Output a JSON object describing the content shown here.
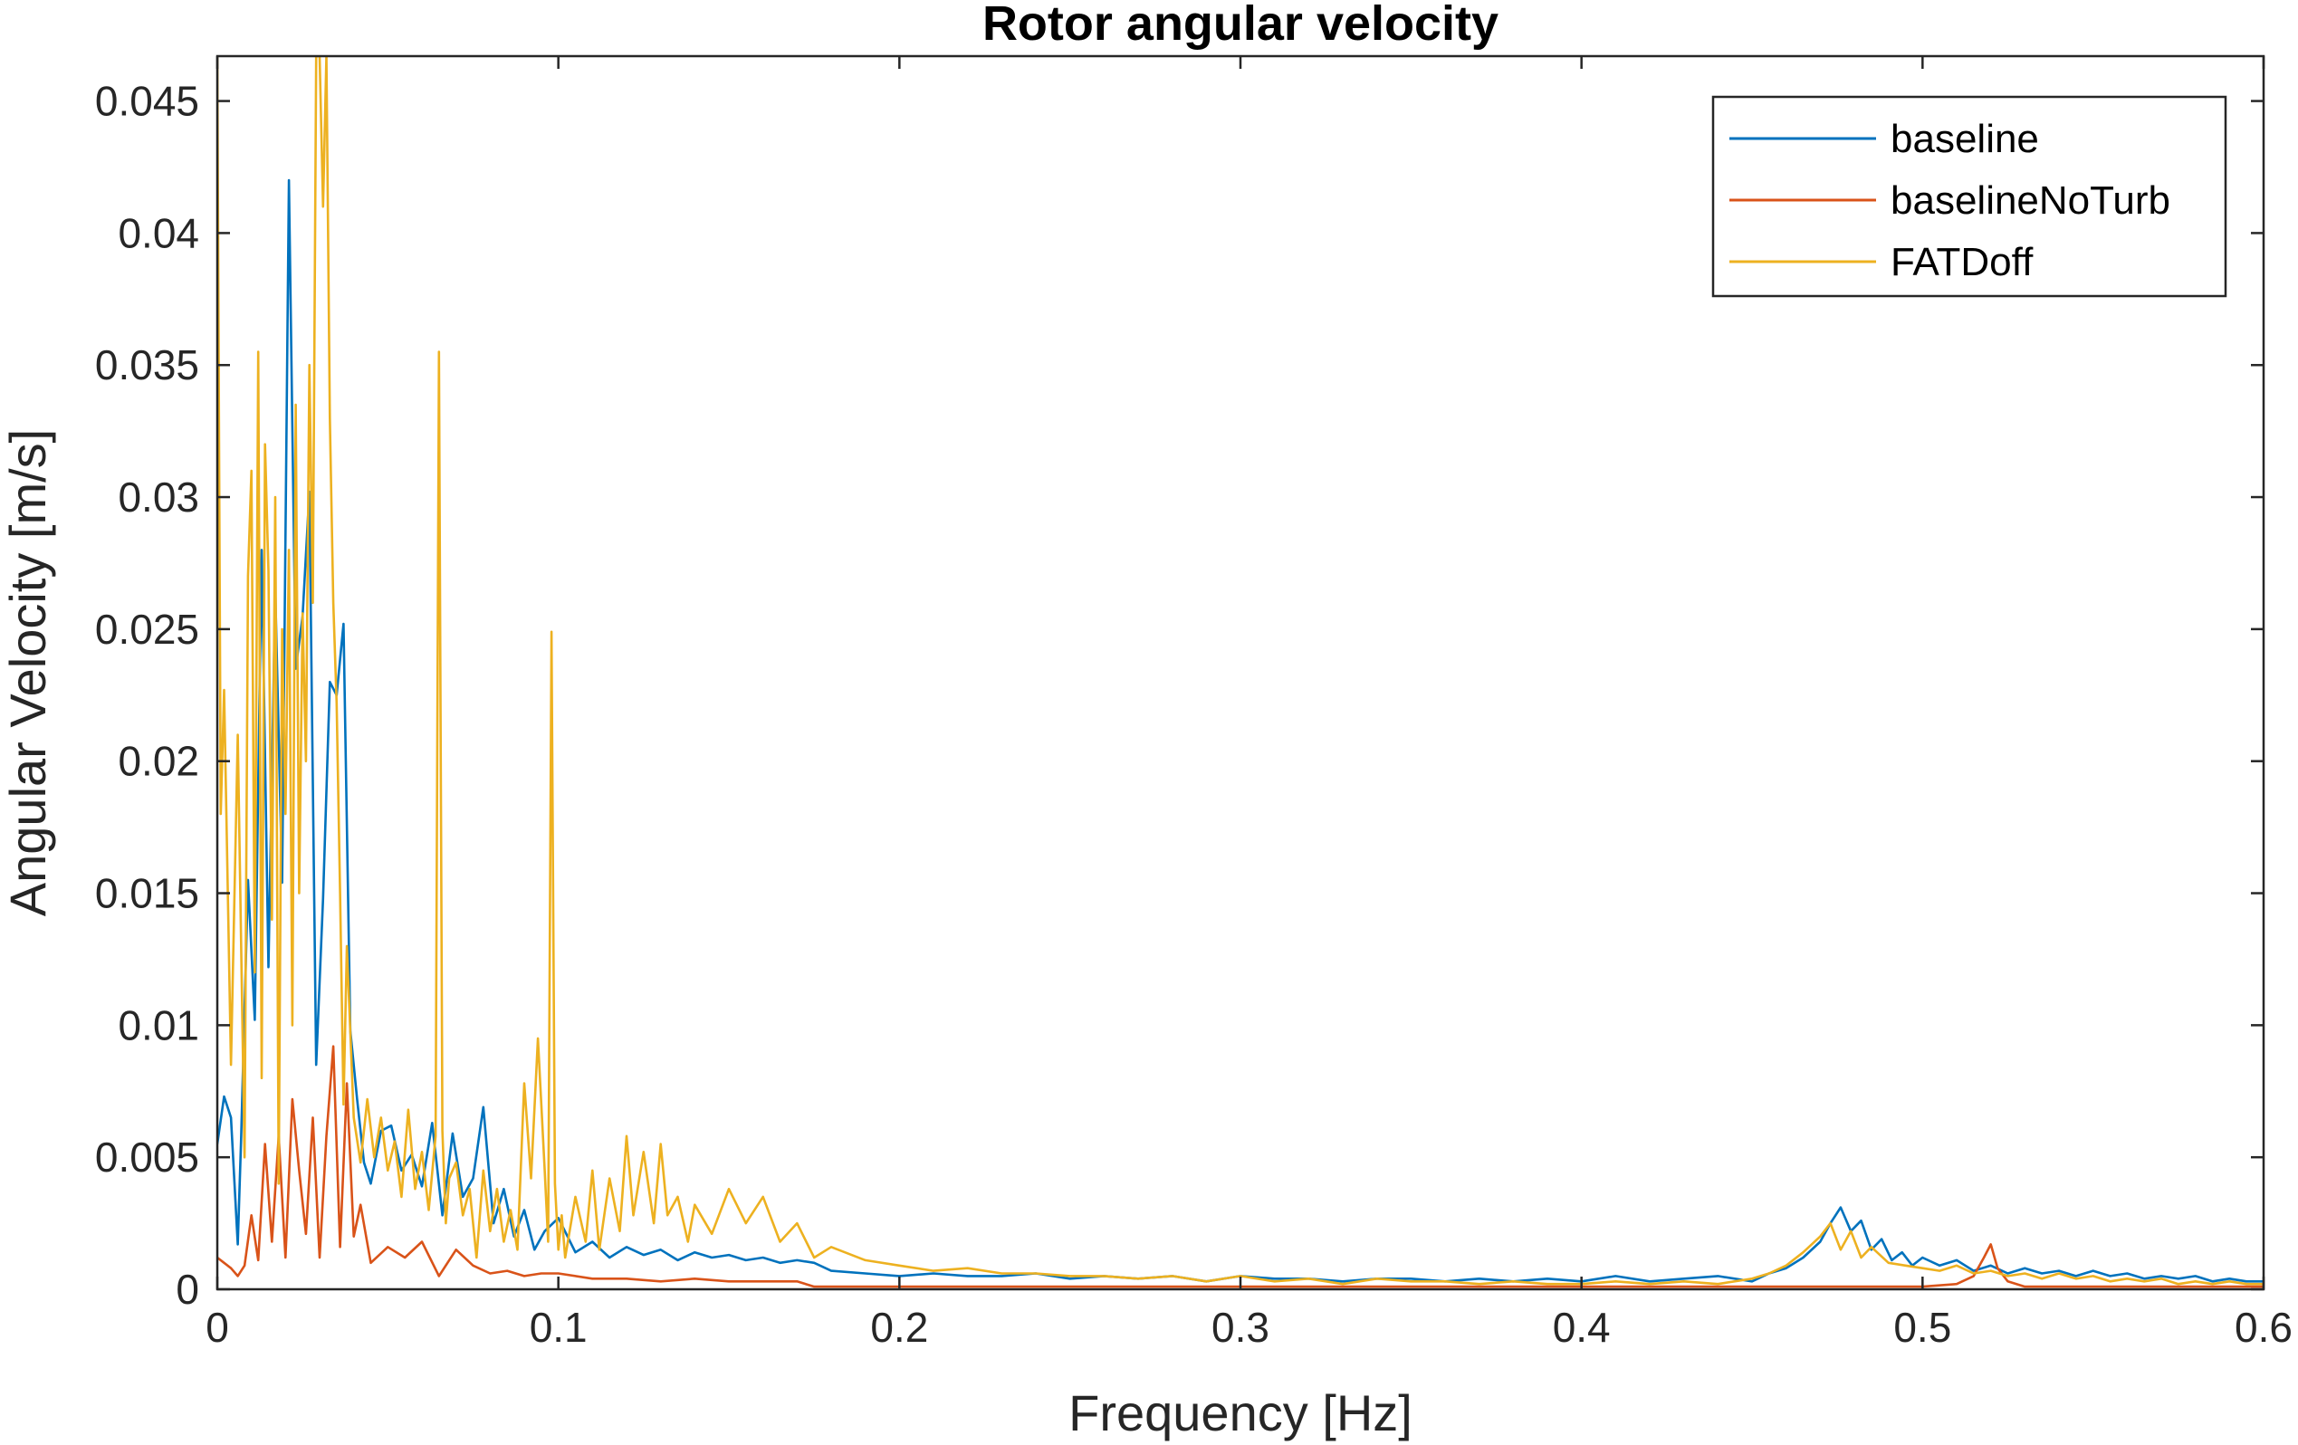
{
  "chart_data": {
    "type": "line",
    "title": "Rotor angular velocity",
    "xlabel": "Frequency [Hz]",
    "ylabel": "Angular Velocity [m/s]",
    "xlim": [
      0,
      0.6
    ],
    "ylim": [
      0,
      0.0467
    ],
    "xticks": [
      0,
      0.1,
      0.2,
      0.3,
      0.4,
      0.5,
      0.6
    ],
    "xtick_labels": [
      "0",
      "0.1",
      "0.2",
      "0.3",
      "0.4",
      "0.5",
      "0.6"
    ],
    "yticks": [
      0,
      0.005,
      0.01,
      0.015,
      0.02,
      0.025,
      0.03,
      0.035,
      0.04,
      0.045
    ],
    "ytick_labels": [
      "0",
      "0.005",
      "0.01",
      "0.015",
      "0.02",
      "0.025",
      "0.03",
      "0.035",
      "0.04",
      "0.045"
    ],
    "grid": false,
    "legend_position": "top-right",
    "series": [
      {
        "name": "baseline",
        "color": "#0072BD",
        "x": [
          0,
          0.002,
          0.004,
          0.006,
          0.007,
          0.009,
          0.011,
          0.013,
          0.015,
          0.017,
          0.019,
          0.021,
          0.023,
          0.025,
          0.027,
          0.029,
          0.031,
          0.033,
          0.035,
          0.037,
          0.039,
          0.041,
          0.043,
          0.045,
          0.048,
          0.051,
          0.054,
          0.057,
          0.06,
          0.063,
          0.066,
          0.069,
          0.072,
          0.075,
          0.078,
          0.081,
          0.084,
          0.087,
          0.09,
          0.093,
          0.096,
          0.1,
          0.105,
          0.11,
          0.115,
          0.12,
          0.125,
          0.13,
          0.135,
          0.14,
          0.145,
          0.15,
          0.155,
          0.16,
          0.165,
          0.17,
          0.175,
          0.18,
          0.19,
          0.2,
          0.21,
          0.22,
          0.23,
          0.24,
          0.25,
          0.26,
          0.27,
          0.28,
          0.29,
          0.3,
          0.31,
          0.32,
          0.33,
          0.34,
          0.35,
          0.36,
          0.37,
          0.38,
          0.39,
          0.4,
          0.41,
          0.42,
          0.43,
          0.44,
          0.45,
          0.455,
          0.46,
          0.465,
          0.47,
          0.473,
          0.476,
          0.479,
          0.482,
          0.485,
          0.488,
          0.491,
          0.494,
          0.497,
          0.5,
          0.505,
          0.51,
          0.515,
          0.52,
          0.525,
          0.53,
          0.535,
          0.54,
          0.545,
          0.55,
          0.555,
          0.56,
          0.565,
          0.57,
          0.575,
          0.58,
          0.585,
          0.59,
          0.595,
          0.6
        ],
        "y": [
          0.0055,
          0.0073,
          0.0065,
          0.0017,
          0.0058,
          0.0155,
          0.0102,
          0.028,
          0.0122,
          0.0265,
          0.0154,
          0.042,
          0.0235,
          0.0255,
          0.0302,
          0.0085,
          0.0148,
          0.023,
          0.0225,
          0.0252,
          0.0098,
          0.0072,
          0.0048,
          0.004,
          0.006,
          0.0062,
          0.0045,
          0.0051,
          0.0039,
          0.0063,
          0.0028,
          0.0059,
          0.0035,
          0.0042,
          0.0069,
          0.0025,
          0.0038,
          0.002,
          0.003,
          0.0015,
          0.0022,
          0.0027,
          0.0014,
          0.0018,
          0.0012,
          0.0016,
          0.0013,
          0.0015,
          0.0011,
          0.0014,
          0.0012,
          0.0013,
          0.0011,
          0.0012,
          0.001,
          0.0011,
          0.001,
          0.0007,
          0.0006,
          0.0005,
          0.0006,
          0.0005,
          0.0005,
          0.0006,
          0.0004,
          0.0005,
          0.0004,
          0.0005,
          0.0003,
          0.0005,
          0.0004,
          0.0004,
          0.0003,
          0.0004,
          0.0004,
          0.0003,
          0.0004,
          0.0003,
          0.0004,
          0.0003,
          0.0005,
          0.0003,
          0.0004,
          0.0005,
          0.0003,
          0.0006,
          0.0008,
          0.0012,
          0.0018,
          0.0025,
          0.0031,
          0.0022,
          0.0026,
          0.0015,
          0.0019,
          0.0011,
          0.0014,
          0.0009,
          0.0012,
          0.0009,
          0.0011,
          0.0007,
          0.0009,
          0.0006,
          0.0008,
          0.0006,
          0.0007,
          0.0005,
          0.0007,
          0.0005,
          0.0006,
          0.0004,
          0.0005,
          0.0004,
          0.0005,
          0.0003,
          0.0004,
          0.0003,
          0.0003
        ]
      },
      {
        "name": "baselineNoTurb",
        "color": "#D95319",
        "x": [
          0,
          0.002,
          0.004,
          0.006,
          0.008,
          0.01,
          0.012,
          0.014,
          0.016,
          0.018,
          0.02,
          0.022,
          0.024,
          0.026,
          0.028,
          0.03,
          0.032,
          0.034,
          0.036,
          0.038,
          0.04,
          0.042,
          0.045,
          0.05,
          0.055,
          0.06,
          0.065,
          0.07,
          0.075,
          0.08,
          0.085,
          0.09,
          0.095,
          0.1,
          0.11,
          0.12,
          0.13,
          0.14,
          0.15,
          0.16,
          0.17,
          0.175,
          0.18,
          0.2,
          0.25,
          0.3,
          0.35,
          0.4,
          0.45,
          0.5,
          0.51,
          0.515,
          0.518,
          0.52,
          0.522,
          0.525,
          0.53,
          0.55,
          0.6
        ],
        "y": [
          0.0012,
          0.001,
          0.0008,
          0.0005,
          0.0009,
          0.0028,
          0.0011,
          0.0055,
          0.0018,
          0.0058,
          0.0012,
          0.0072,
          0.0045,
          0.0021,
          0.0065,
          0.0012,
          0.0058,
          0.0092,
          0.0016,
          0.0078,
          0.002,
          0.0032,
          0.001,
          0.0016,
          0.0012,
          0.0018,
          0.0005,
          0.0015,
          0.0009,
          0.0006,
          0.0007,
          0.0005,
          0.0006,
          0.0006,
          0.0004,
          0.0004,
          0.0003,
          0.0004,
          0.0003,
          0.0003,
          0.0003,
          0.0001,
          0.0001,
          0.0001,
          0.0001,
          0.0001,
          0.0001,
          0.0001,
          0.0001,
          0.0001,
          0.0002,
          0.0005,
          0.0012,
          0.0017,
          0.0008,
          0.0003,
          0.0001,
          0.0001,
          0.0001
        ]
      },
      {
        "name": "FATDoff",
        "color": "#EDB120",
        "x": [
          0,
          0.001,
          0.002,
          0.004,
          0.006,
          0.008,
          0.009,
          0.01,
          0.011,
          0.012,
          0.013,
          0.014,
          0.015,
          0.016,
          0.017,
          0.018,
          0.019,
          0.02,
          0.021,
          0.022,
          0.023,
          0.024,
          0.025,
          0.026,
          0.027,
          0.028,
          0.029,
          0.03,
          0.031,
          0.032,
          0.033,
          0.034,
          0.035,
          0.036,
          0.037,
          0.038,
          0.04,
          0.042,
          0.044,
          0.046,
          0.048,
          0.05,
          0.052,
          0.054,
          0.056,
          0.058,
          0.06,
          0.062,
          0.064,
          0.065,
          0.066,
          0.067,
          0.068,
          0.07,
          0.072,
          0.074,
          0.076,
          0.078,
          0.08,
          0.082,
          0.084,
          0.086,
          0.088,
          0.09,
          0.092,
          0.094,
          0.096,
          0.097,
          0.098,
          0.099,
          0.1,
          0.101,
          0.102,
          0.105,
          0.108,
          0.11,
          0.112,
          0.115,
          0.118,
          0.12,
          0.122,
          0.125,
          0.128,
          0.13,
          0.132,
          0.135,
          0.138,
          0.14,
          0.145,
          0.15,
          0.155,
          0.16,
          0.165,
          0.17,
          0.175,
          0.18,
          0.19,
          0.2,
          0.21,
          0.22,
          0.23,
          0.24,
          0.25,
          0.26,
          0.27,
          0.28,
          0.29,
          0.3,
          0.31,
          0.32,
          0.33,
          0.34,
          0.35,
          0.36,
          0.37,
          0.38,
          0.39,
          0.4,
          0.41,
          0.42,
          0.43,
          0.44,
          0.45,
          0.455,
          0.46,
          0.465,
          0.47,
          0.473,
          0.476,
          0.479,
          0.482,
          0.485,
          0.49,
          0.495,
          0.5,
          0.505,
          0.51,
          0.515,
          0.52,
          0.525,
          0.53,
          0.535,
          0.54,
          0.545,
          0.55,
          0.555,
          0.56,
          0.565,
          0.57,
          0.575,
          0.58,
          0.585,
          0.59,
          0.595,
          0.6
        ],
        "y": [
          0.0467,
          0.018,
          0.0227,
          0.0085,
          0.021,
          0.005,
          0.027,
          0.031,
          0.012,
          0.0355,
          0.008,
          0.032,
          0.0272,
          0.014,
          0.03,
          0.004,
          0.025,
          0.018,
          0.028,
          0.01,
          0.0335,
          0.015,
          0.0256,
          0.02,
          0.035,
          0.026,
          0.0467,
          0.0467,
          0.041,
          0.0467,
          0.033,
          0.026,
          0.0222,
          0.015,
          0.007,
          0.013,
          0.0065,
          0.0048,
          0.0072,
          0.005,
          0.0065,
          0.0045,
          0.0056,
          0.0035,
          0.0068,
          0.0038,
          0.0052,
          0.003,
          0.0058,
          0.0355,
          0.006,
          0.0025,
          0.0042,
          0.0048,
          0.0028,
          0.0038,
          0.0012,
          0.0045,
          0.0022,
          0.0038,
          0.0018,
          0.003,
          0.0015,
          0.0078,
          0.0042,
          0.0095,
          0.0045,
          0.0018,
          0.0249,
          0.004,
          0.0015,
          0.0028,
          0.0012,
          0.0035,
          0.0018,
          0.0045,
          0.0015,
          0.0042,
          0.0022,
          0.0058,
          0.0028,
          0.0052,
          0.0025,
          0.0055,
          0.0028,
          0.0035,
          0.0018,
          0.0032,
          0.0021,
          0.0038,
          0.0025,
          0.0035,
          0.0018,
          0.0025,
          0.0012,
          0.0016,
          0.0011,
          0.0009,
          0.0007,
          0.0008,
          0.0006,
          0.0006,
          0.0005,
          0.0005,
          0.0004,
          0.0005,
          0.0003,
          0.0005,
          0.0003,
          0.0004,
          0.0002,
          0.0004,
          0.0003,
          0.0003,
          0.0002,
          0.0003,
          0.0002,
          0.0002,
          0.0003,
          0.0002,
          0.0003,
          0.0002,
          0.0004,
          0.0006,
          0.0009,
          0.0014,
          0.002,
          0.0025,
          0.0015,
          0.0022,
          0.0012,
          0.0016,
          0.001,
          0.0009,
          0.0008,
          0.0007,
          0.0009,
          0.0006,
          0.0007,
          0.0005,
          0.0006,
          0.0004,
          0.0006,
          0.0004,
          0.0005,
          0.0003,
          0.0004,
          0.0003,
          0.0004,
          0.0002,
          0.0003,
          0.0002,
          0.0003,
          0.0002,
          0.0002
        ]
      }
    ]
  }
}
